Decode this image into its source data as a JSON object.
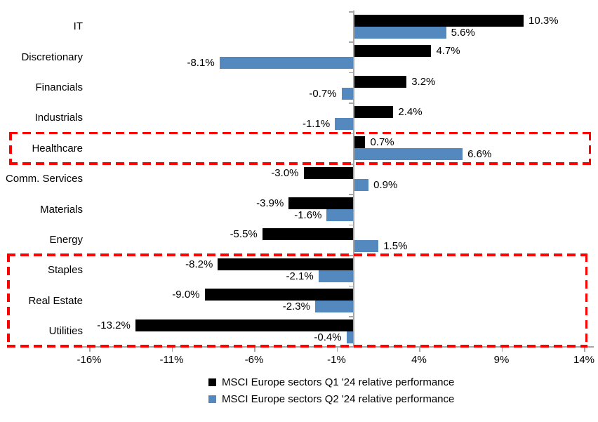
{
  "chart_data": {
    "type": "bar",
    "orientation": "horizontal",
    "title": "",
    "categories": [
      "IT",
      "Discretionary",
      "Financials",
      "Industrials",
      "Healthcare",
      "Comm. Services",
      "Materials",
      "Energy",
      "Staples",
      "Real Estate",
      "Utilities"
    ],
    "series": [
      {
        "name": "MSCI Europe sectors Q1 '24 relative performance",
        "color": "#000000",
        "values": [
          10.3,
          4.7,
          3.2,
          2.4,
          0.7,
          -3.0,
          -3.9,
          -5.5,
          -8.2,
          -9.0,
          -13.2
        ]
      },
      {
        "name": "MSCI Europe sectors Q2 '24 relative performance",
        "color": "#5389BE",
        "values": [
          5.6,
          -8.1,
          -0.7,
          -1.1,
          6.6,
          0.9,
          -1.6,
          1.5,
          -2.1,
          -2.3,
          -0.4
        ]
      }
    ],
    "value_labels": [
      [
        "10.3%",
        "4.7%",
        "3.2%",
        "2.4%",
        "0.7%",
        "-3.0%",
        "-3.9%",
        "-5.5%",
        "-8.2%",
        "-9.0%",
        "-13.2%"
      ],
      [
        "5.6%",
        "-8.1%",
        "-0.7%",
        "-1.1%",
        "6.6%",
        "0.9%",
        "-1.6%",
        "1.5%",
        "-2.1%",
        "-2.3%",
        "-0.4%"
      ]
    ],
    "x_axis": {
      "min": -16,
      "max": 14,
      "tick_values": [
        -16,
        -11,
        -6,
        -1,
        4,
        9,
        14
      ],
      "tick_labels": [
        "-16%",
        "-11%",
        "-6%",
        "-1%",
        "4%",
        "9%",
        "14%"
      ],
      "grid": false
    },
    "highlights": [
      {
        "name": "highlight-box-healthcare",
        "row_start": 4,
        "row_end": 4,
        "color": "#FF0000",
        "style": "dashed"
      },
      {
        "name": "highlight-box-defensives",
        "row_start": 8,
        "row_end": 10,
        "color": "#FF0000",
        "style": "dashed"
      }
    ],
    "legend": {
      "position": "bottom"
    }
  }
}
